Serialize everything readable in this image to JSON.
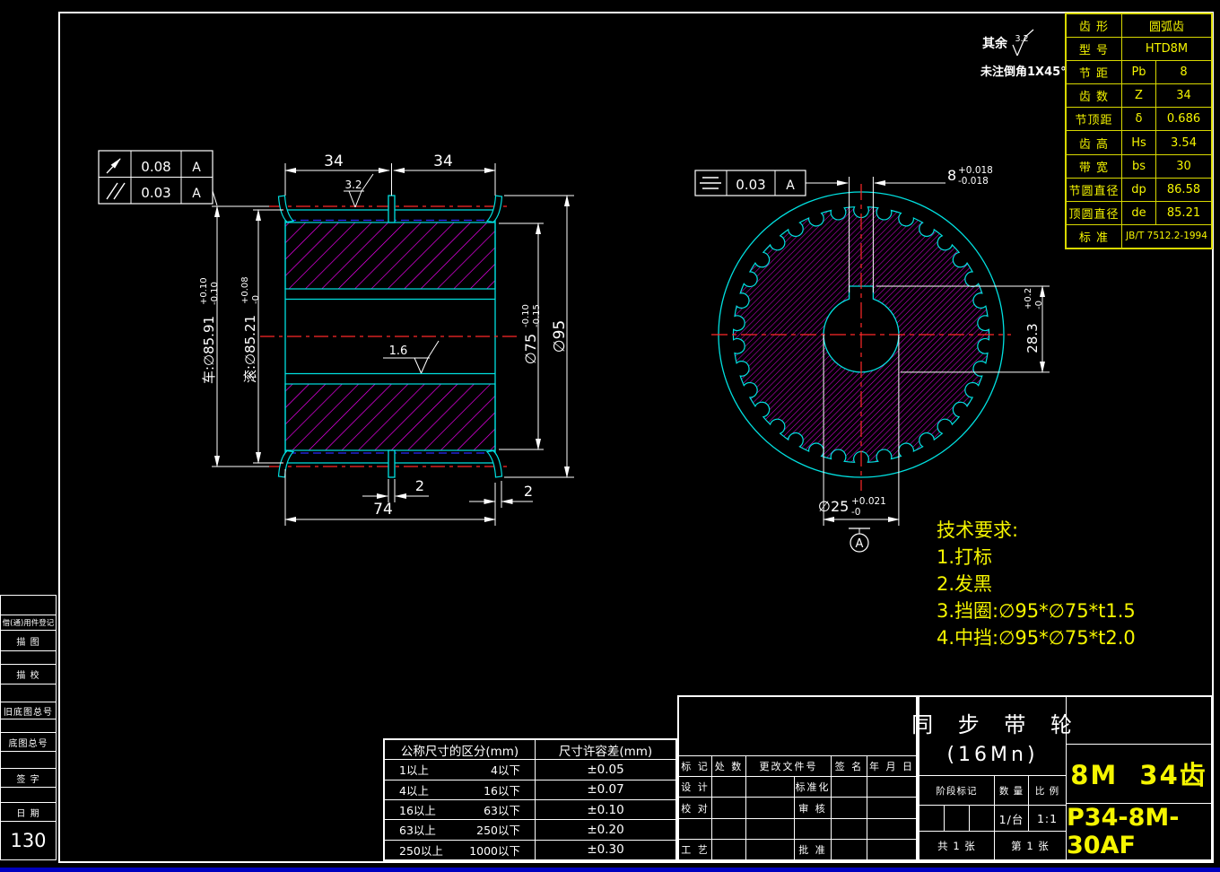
{
  "colors": {
    "background": "#000000",
    "outline": "#00e0e0",
    "hatch": "#ff00ff",
    "centerline": "#ff2828",
    "hidden_line": "#2a2aff",
    "annotation": "#ffffff",
    "accent_text": "#f5f500"
  },
  "surface_note": {
    "prefix": "其余",
    "roughness": "3.2",
    "chamfer_note": "未注倒角1X45°"
  },
  "param_table": {
    "rows": [
      {
        "label": "齿 形",
        "symbol": "",
        "value": "圆弧齿"
      },
      {
        "label": "型 号",
        "symbol": "",
        "value": "HTD8M"
      },
      {
        "label": "节 距",
        "symbol": "Pb",
        "value": "8"
      },
      {
        "label": "齿 数",
        "symbol": "Z",
        "value": "34"
      },
      {
        "label": "节顶距",
        "symbol": "δ",
        "value": "0.686"
      },
      {
        "label": "齿 高",
        "symbol": "Hs",
        "value": "3.54"
      },
      {
        "label": "带 宽",
        "symbol": "bs",
        "value": "30"
      },
      {
        "label": "节圆直径",
        "symbol": "dp",
        "value": "86.58"
      },
      {
        "label": "顶圆直径",
        "symbol": "de",
        "value": "85.21"
      },
      {
        "label": "标 准",
        "symbol": "",
        "value": "JB/T 7512.2-1994"
      }
    ]
  },
  "gdt": {
    "runout": {
      "value": "0.08",
      "datum": "A"
    },
    "parallelism": {
      "value": "0.03",
      "datum": "A"
    },
    "symmetry": {
      "value": "0.03",
      "datum": "A"
    }
  },
  "front_view": {
    "dim_width_left": "34",
    "dim_width_right": "34",
    "finish_rim": "3.2",
    "finish_bore": "1.6",
    "dim_groove": "2",
    "dim_total_width": "74",
    "dim_flange": "2",
    "dia_turned": {
      "label": "车:∅85.91",
      "upper": "+0.10",
      "lower": "-0.10"
    },
    "dia_rolled": {
      "label": "滚:∅85.21",
      "upper": "+0.08",
      "lower": "-0"
    },
    "dia_inner": {
      "label": "∅75",
      "upper": "-0.10",
      "lower": "-0.15"
    },
    "dia_flange": "∅95"
  },
  "side_view": {
    "teeth": 34,
    "dim_keyway_width": {
      "label": "8",
      "upper": "+0.018",
      "lower": "-0.018"
    },
    "dim_keyway_height": {
      "label": "28.3",
      "upper": "+0.2",
      "lower": "-0"
    },
    "dim_bore": {
      "label": "∅25",
      "upper": "+0.021",
      "lower": "-0"
    },
    "datum_label": "A"
  },
  "tech_req": {
    "title": "技术要求:",
    "items": [
      "1.打标",
      "2.发黑",
      "3.挡圈:∅95*∅75*t1.5",
      "4.中挡:∅95*∅75*t2.0"
    ]
  },
  "tolerance_table": {
    "header_range": "公称尺寸的区分(mm)",
    "header_tol": "尺寸许容差(mm)",
    "rows": [
      {
        "from": "1以上",
        "to": "4以下",
        "tol": "±0.05"
      },
      {
        "from": "4以上",
        "to": "16以下",
        "tol": "±0.07"
      },
      {
        "from": "16以上",
        "to": "63以下",
        "tol": "±0.10"
      },
      {
        "from": "63以上",
        "to": "250以下",
        "tol": "±0.20"
      },
      {
        "from": "250以上",
        "to": "1000以下",
        "tol": "±0.30"
      }
    ]
  },
  "revision_block": {
    "header": {
      "mark": "标 记",
      "count": "处 数",
      "doc_no": "更改文件号",
      "sign": "签 名",
      "date": "年 月 日"
    },
    "rows": [
      {
        "left": "设 计",
        "right": "标准化"
      },
      {
        "left": "校 对",
        "right": "审 核"
      },
      {
        "left": "",
        "right": ""
      },
      {
        "left": "工 艺",
        "right": "批 准"
      }
    ]
  },
  "title_block": {
    "part_name": "同 步 带 轮",
    "material": "(16Mn)",
    "stage_label": "阶段标记",
    "qty_label": "数 量",
    "scale_label": "比 例",
    "qty_value": "1/台",
    "scale_value": "1:1",
    "sheets_total": "共 1 张",
    "sheet_no": "第 1 张",
    "spec": "8M  34齿",
    "drawing_no": "P34-8M-30AF"
  },
  "left_strip": {
    "items": [
      "借(通)用件登记",
      "描 图",
      "",
      "描 校",
      "",
      "旧底图总号",
      "",
      "底图总号",
      "",
      "签 字",
      "",
      "日 期"
    ],
    "page_no": "130"
  }
}
